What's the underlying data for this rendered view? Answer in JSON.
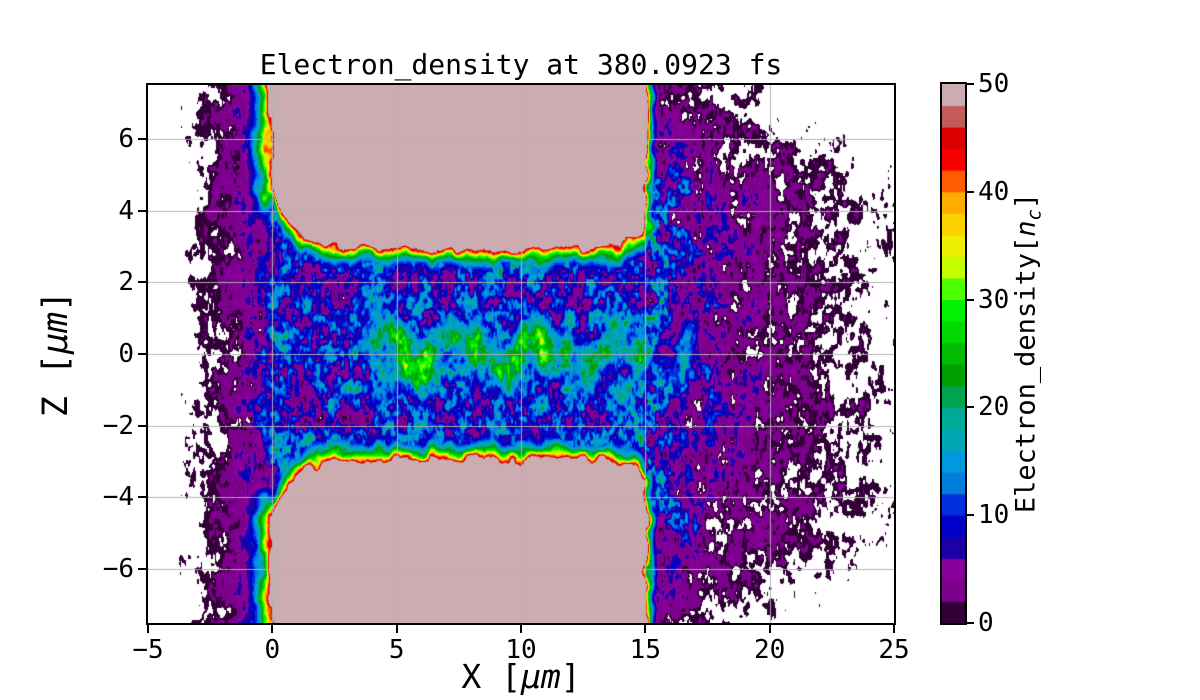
{
  "figure": {
    "background": "#ffffff"
  },
  "chart_data": {
    "type": "heatmap",
    "title": "Electron_density at 380.0923 fs",
    "xlabel": {
      "pre": "X [",
      "unit": "μm",
      "post": "]"
    },
    "ylabel": {
      "pre": "Z [",
      "unit": "μm",
      "post": "]"
    },
    "xlim": [
      -5,
      25
    ],
    "zlim": [
      -7.5,
      7.5
    ],
    "xticks": {
      "values": [
        -5,
        0,
        5,
        10,
        15,
        20,
        25
      ],
      "labels": [
        "−5",
        "0",
        "5",
        "10",
        "15",
        "20",
        "25"
      ]
    },
    "yticks": {
      "values": [
        6,
        4,
        2,
        0,
        -2,
        -4,
        -6
      ],
      "labels": [
        "6",
        "4",
        "2",
        "0",
        "−2",
        "−4",
        "−6"
      ]
    },
    "grid": {
      "x": [
        0,
        5,
        10,
        15,
        20
      ],
      "z": [
        -6,
        -4,
        -2,
        0,
        2,
        4,
        6
      ],
      "color": "#b2b2b2"
    },
    "colorbar": {
      "label": {
        "pre": "Electron_density[",
        "var": "n",
        "sub": "c",
        "post": "]"
      },
      "ticks": {
        "values": [
          0,
          10,
          20,
          30,
          40,
          50
        ],
        "labels": [
          "0",
          "10",
          "20",
          "30",
          "40",
          "50"
        ]
      },
      "vmin": 0,
      "vmax": 50,
      "n_levels": 25,
      "palette": [
        "#300036",
        "#7b008b",
        "#880099",
        "#1b00a7",
        "#0000c9",
        "#0030dd",
        "#007edd",
        "#0099dd",
        "#00a7b4",
        "#00aa96",
        "#00a352",
        "#00a000",
        "#00bb00",
        "#00da00",
        "#00f200",
        "#4bff00",
        "#c5fc00",
        "#eeee00",
        "#fcd300",
        "#ffad00",
        "#ff5c00",
        "#f80000",
        "#dd0000",
        "#c25c5a",
        "#cbacb1"
      ]
    },
    "field": {
      "description": "Two over-dense plasma slabs (x 0-15 um, |z| >~3 um, density saturated at 50 nc) form a channel along z=0; rainbow rim layers at slab boundaries, under-dense cyan/green filament with blobs along channel axis, speckled purple plasma outside fading to white vacuum",
      "slab": {
        "x0": 0,
        "x1": 15,
        "wall_z": 3.0,
        "entrance_flare": 1.6,
        "flare_scale": 0.75,
        "exit_round": 0.55,
        "exit_scale": 0.5,
        "density": 50
      },
      "rim_scales": {
        "left": 0.5,
        "right": 0.22,
        "wall": 0.38
      },
      "ambient": {
        "channel": 10.5,
        "left_decay": 1.25,
        "right": 11.5,
        "right_decay": 3.4
      },
      "filament": {
        "start": 2.0,
        "end": 19.0,
        "base": 7,
        "z_sigma": 0.55,
        "blobs": [
          [
            4.1,
            6
          ],
          [
            5.3,
            11
          ],
          [
            6.1,
            14
          ],
          [
            7.2,
            9
          ],
          [
            8.2,
            17
          ],
          [
            9.0,
            12
          ],
          [
            9.9,
            15
          ],
          [
            10.8,
            19
          ],
          [
            11.7,
            10
          ],
          [
            12.7,
            14
          ],
          [
            13.7,
            9
          ],
          [
            14.7,
            8
          ],
          [
            16.6,
            13
          ]
        ]
      },
      "chevron": {
        "x0": 3.0,
        "x1": 6.4,
        "slope": 0.52,
        "amp": 8,
        "sigma": 0.3
      },
      "white_threshold": 1.05,
      "seeds": [
        101,
        202,
        303,
        404
      ]
    }
  }
}
